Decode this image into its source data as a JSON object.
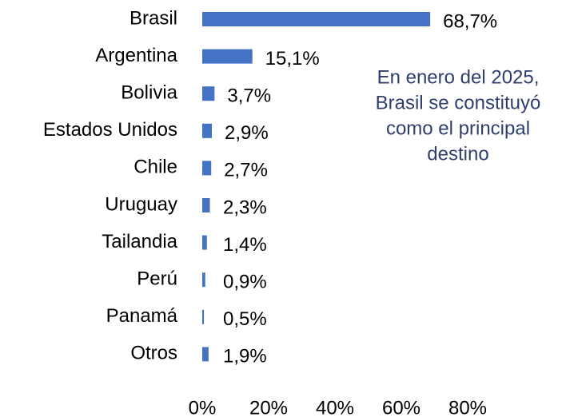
{
  "chart_data": {
    "type": "hbar",
    "categories": [
      "Brasil",
      "Argentina",
      "Bolivia",
      "Estados Unidos",
      "Chile",
      "Uruguay",
      "Tailandia",
      "Perú",
      "Panamá",
      "Otros"
    ],
    "values": [
      68.7,
      15.1,
      3.7,
      2.9,
      2.7,
      2.3,
      1.4,
      0.9,
      0.5,
      1.9
    ],
    "value_labels": [
      "68,7%",
      "15,1%",
      "3,7%",
      "2,9%",
      "2,7%",
      "2,3%",
      "1,4%",
      "0,9%",
      "0,5%",
      "1,9%"
    ],
    "color": "#4472c4",
    "xlim": [
      0,
      80
    ],
    "xticks": [
      {
        "value": 0,
        "label": "0%"
      },
      {
        "value": 20,
        "label": "20%"
      },
      {
        "value": 40,
        "label": "40%"
      },
      {
        "value": 60,
        "label": "60%"
      },
      {
        "value": 80,
        "label": "80%"
      }
    ],
    "annotation": [
      "En enero del 2025,",
      "Brasil se constituyó",
      "como el principal",
      "destino"
    ]
  }
}
